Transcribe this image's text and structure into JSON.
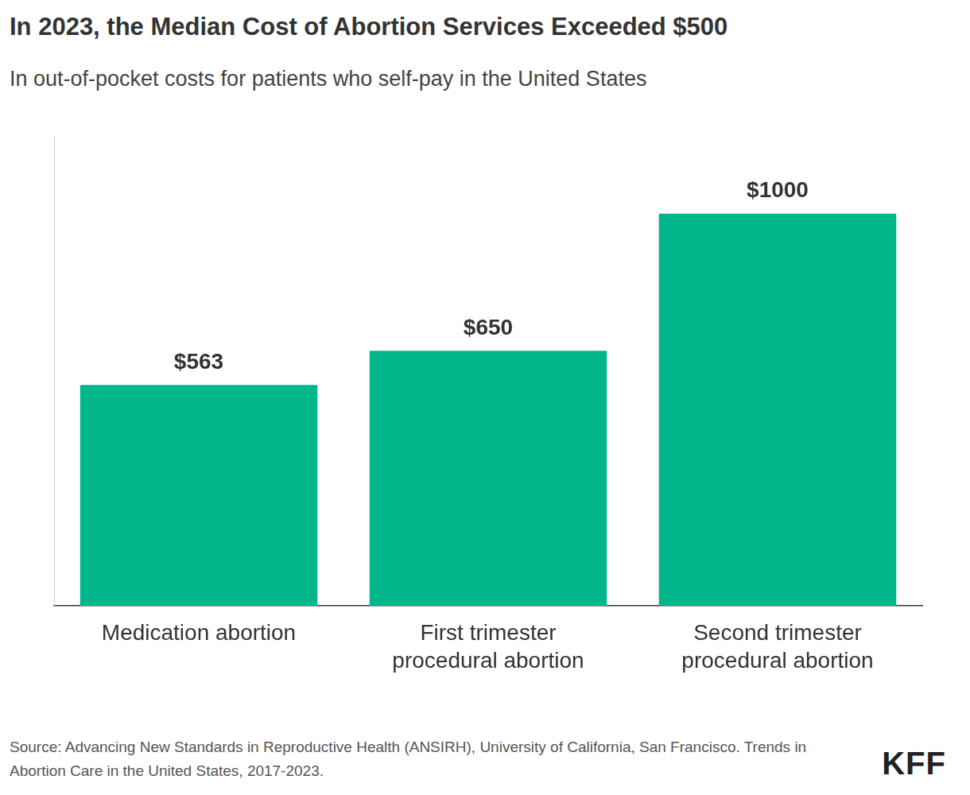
{
  "chart_data": {
    "type": "bar",
    "title": "In 2023, the Median Cost of Abortion Services Exceeded $500",
    "subtitle": "In out-of-pocket costs for patients who self-pay in the United States",
    "categories": [
      "Medication abortion",
      "First trimester procedural abortion",
      "Second trimester procedural abortion"
    ],
    "values": [
      563,
      650,
      1000
    ],
    "value_labels": [
      "$563",
      "$650",
      "$1000"
    ],
    "data_labels": true,
    "color": "#00b68a",
    "ylim": [
      0,
      1200
    ],
    "grid": false,
    "tick_labels": "x",
    "source": "Source: Advancing New Standards in Reproductive Health (ANSIRH), University of California, San Francisco. Trends in Abortion Care in the United States, 2017-2023.",
    "logo": "KFF"
  }
}
